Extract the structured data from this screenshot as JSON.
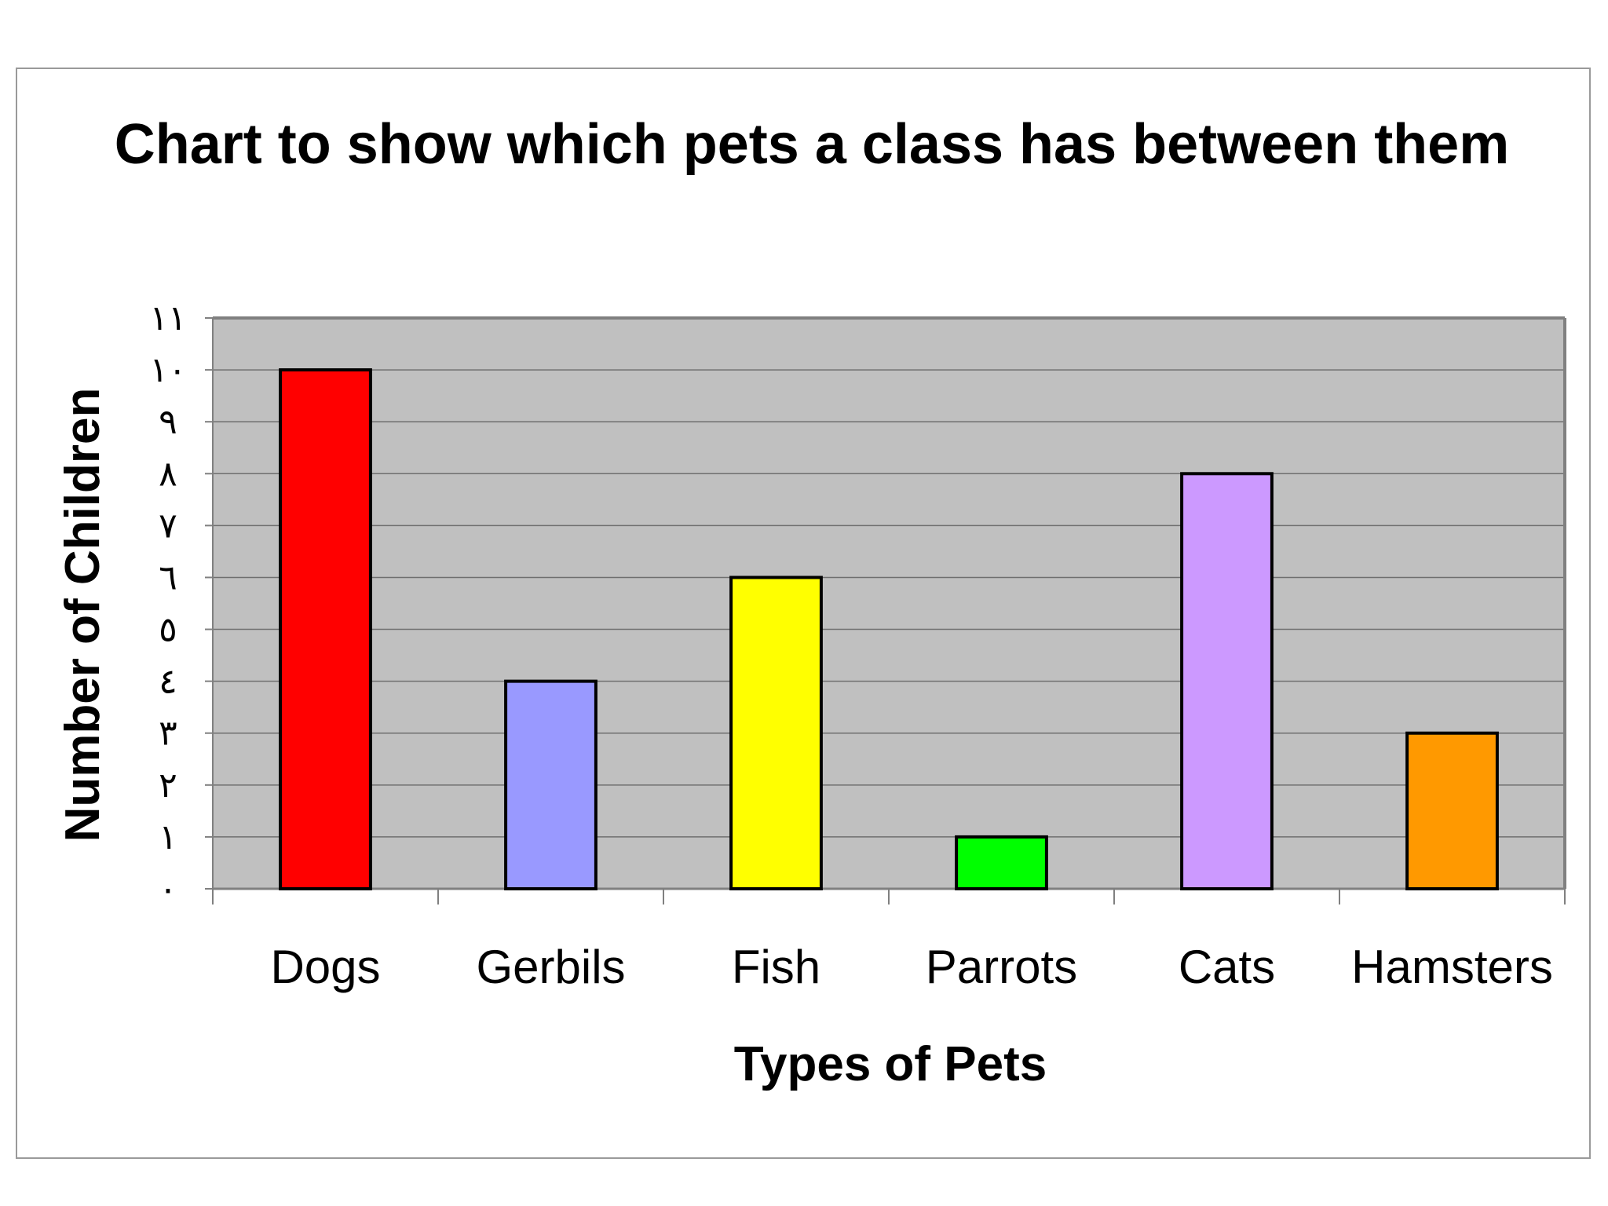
{
  "chart_data": {
    "type": "bar",
    "title": "Chart to show which pets a class has between them",
    "xlabel": "Types of Pets",
    "ylabel": "Number of Children",
    "categories": [
      "Dogs",
      "Gerbils",
      "Fish",
      "Parrots",
      "Cats",
      "Hamsters"
    ],
    "values": [
      10,
      4,
      6,
      1,
      8,
      3
    ],
    "colors": [
      "#ff0000",
      "#9999ff",
      "#ffff00",
      "#00ff00",
      "#cc99ff",
      "#ff9900"
    ],
    "ylim": [
      0,
      11
    ],
    "yticks": [
      0,
      1,
      2,
      3,
      4,
      5,
      6,
      7,
      8,
      9,
      10,
      11
    ],
    "ytick_labels": [
      "٠",
      "١",
      "٢",
      "٣",
      "٤",
      "٥",
      "٦",
      "٧",
      "٨",
      "٩",
      "١٠",
      "١١"
    ],
    "grid": true,
    "plot_background": "#c0c0c0",
    "legend": "none"
  }
}
